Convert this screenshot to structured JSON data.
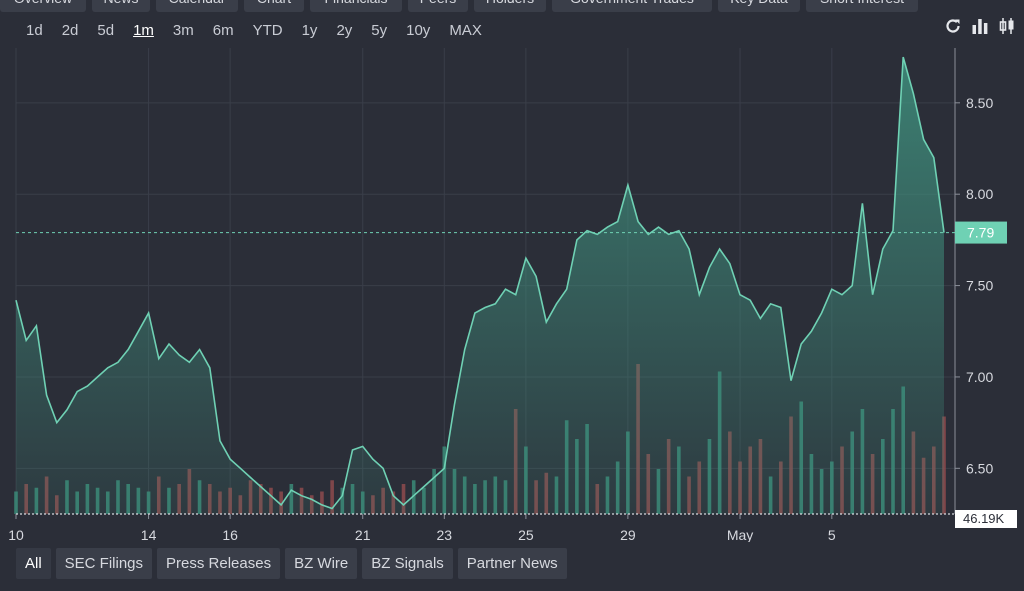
{
  "top_tabs": [
    "Overview",
    "News",
    "Calendar",
    "Chart",
    "Financials",
    "Peers",
    "Holders",
    "Government Trades",
    "Key Data",
    "Short Interest"
  ],
  "ranges": [
    "1d",
    "2d",
    "5d",
    "1m",
    "3m",
    "6m",
    "YTD",
    "1y",
    "2y",
    "5y",
    "10y",
    "MAX"
  ],
  "active_range": "1m",
  "tools": [
    "refresh-icon",
    "bar-chart-icon",
    "candlestick-icon"
  ],
  "bottom_tabs": [
    "All",
    "SEC Filings",
    "Press Releases",
    "BZ Wire",
    "BZ Signals",
    "Partner News"
  ],
  "active_bottom_tab": "All",
  "colors": {
    "line": "#6fd1b4",
    "fill_top": "#3f8f7d",
    "volume_up": "#3b8a78",
    "volume_down": "#8e4a4e",
    "last_badge": "#6fd1b4",
    "grid": "#3a3e49"
  },
  "chart_data": {
    "type": "area",
    "x_tick_labels": [
      "10",
      "14",
      "16",
      "21",
      "23",
      "25",
      "29",
      "May",
      "5"
    ],
    "y_ticks": [
      6.5,
      7.0,
      7.5,
      8.0,
      8.5
    ],
    "y_tick_labels": [
      "6.50",
      "7.00",
      "7.50",
      "8.00",
      "8.50"
    ],
    "ylim": [
      6.25,
      8.8
    ],
    "last_price": 7.79,
    "last_price_label": "7.79",
    "volume_label": "46.19K",
    "price_series": [
      7.42,
      7.2,
      7.28,
      6.9,
      6.75,
      6.82,
      6.92,
      6.95,
      7.0,
      7.05,
      7.08,
      7.15,
      7.25,
      7.35,
      7.1,
      7.18,
      7.12,
      7.08,
      7.15,
      7.05,
      6.65,
      6.55,
      6.5,
      6.45,
      6.4,
      6.35,
      6.3,
      6.38,
      6.35,
      6.33,
      6.3,
      6.28,
      6.35,
      6.6,
      6.62,
      6.55,
      6.5,
      6.35,
      6.3,
      6.35,
      6.4,
      6.45,
      6.5,
      6.85,
      7.15,
      7.35,
      7.38,
      7.4,
      7.48,
      7.45,
      7.65,
      7.55,
      7.3,
      7.4,
      7.48,
      7.75,
      7.8,
      7.78,
      7.82,
      7.85,
      8.05,
      7.85,
      7.78,
      7.82,
      7.78,
      7.8,
      7.7,
      7.45,
      7.6,
      7.7,
      7.62,
      7.45,
      7.42,
      7.32,
      7.4,
      7.38,
      6.98,
      7.18,
      7.25,
      7.35,
      7.48,
      7.45,
      7.5,
      7.95,
      7.45,
      7.7,
      7.8,
      8.75,
      8.55,
      8.3,
      8.2,
      7.79
    ],
    "volume_series": [
      6,
      8,
      7,
      10,
      5,
      9,
      6,
      8,
      7,
      6,
      9,
      8,
      7,
      6,
      10,
      7,
      8,
      12,
      9,
      8,
      6,
      7,
      5,
      9,
      8,
      7,
      6,
      8,
      7,
      5,
      6,
      9,
      7,
      8,
      6,
      5,
      7,
      6,
      8,
      9,
      7,
      12,
      18,
      12,
      10,
      8,
      9,
      10,
      9,
      28,
      18,
      9,
      11,
      10,
      25,
      20,
      24,
      8,
      10,
      14,
      22,
      40,
      16,
      12,
      20,
      18,
      10,
      14,
      20,
      38,
      22,
      14,
      18,
      20,
      10,
      14,
      26,
      30,
      16,
      12,
      14,
      18,
      22,
      28,
      16,
      20,
      28,
      34,
      22,
      15,
      18,
      26
    ]
  }
}
